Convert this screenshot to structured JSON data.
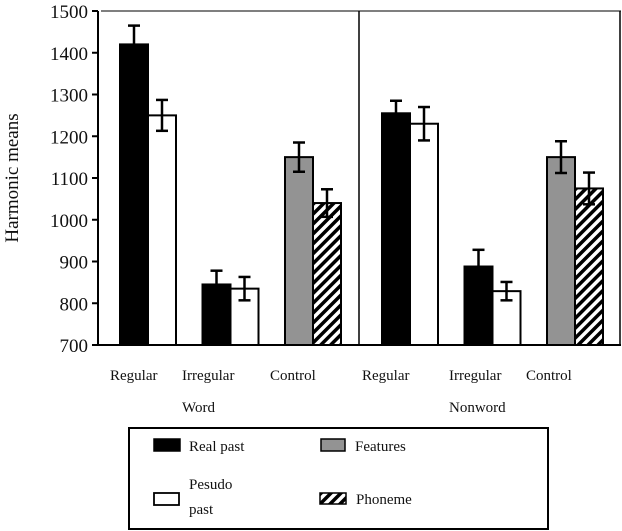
{
  "chart_data": {
    "type": "bar",
    "title": "",
    "xlabel": "",
    "ylabel": "Harmonic means",
    "ylim": [
      700,
      1500
    ],
    "yticks": [
      700,
      800,
      900,
      1000,
      1100,
      1200,
      1300,
      1400,
      1500
    ],
    "grid": false,
    "legend_position": "bottom",
    "panels": [
      {
        "name": "Word",
        "groups": [
          {
            "category": "Regular",
            "bars": [
              {
                "series": "Real past",
                "value": 1420,
                "err": 45
              },
              {
                "series": "Pesudo past",
                "value": 1250,
                "err": 37
              }
            ]
          },
          {
            "category": "Irregular",
            "bars": [
              {
                "series": "Real past",
                "value": 845,
                "err": 33
              },
              {
                "series": "Pesudo past",
                "value": 835,
                "err": 28
              }
            ]
          },
          {
            "category": "Control",
            "bars": [
              {
                "series": "Features",
                "value": 1150,
                "err": 35
              },
              {
                "series": "Phoneme",
                "value": 1040,
                "err": 33
              }
            ]
          }
        ]
      },
      {
        "name": "Nonword",
        "groups": [
          {
            "category": "Regular",
            "bars": [
              {
                "series": "Real past",
                "value": 1255,
                "err": 30
              },
              {
                "series": "Pesudo past",
                "value": 1230,
                "err": 40
              }
            ]
          },
          {
            "category": "Irregular",
            "bars": [
              {
                "series": "Real past",
                "value": 888,
                "err": 40
              },
              {
                "series": "Pesudo past",
                "value": 829,
                "err": 22
              }
            ]
          },
          {
            "category": "Control",
            "bars": [
              {
                "series": "Features",
                "value": 1150,
                "err": 38
              },
              {
                "series": "Phoneme",
                "value": 1075,
                "err": 38
              }
            ]
          }
        ]
      }
    ],
    "legend": [
      {
        "series": "Real past",
        "label": "Real past",
        "style": "solid-black"
      },
      {
        "series": "Features",
        "label": "Features",
        "style": "solid-gray"
      },
      {
        "series": "Pesudo past",
        "label_lines": [
          "Pesudo",
          "past"
        ],
        "style": "white"
      },
      {
        "series": "Phoneme",
        "label": "Phoneme",
        "style": "hatched"
      }
    ],
    "colors": {
      "Real past": "#000000",
      "Pesudo past": "#ffffff",
      "Features": "#939393",
      "Phoneme": "hatch"
    }
  }
}
